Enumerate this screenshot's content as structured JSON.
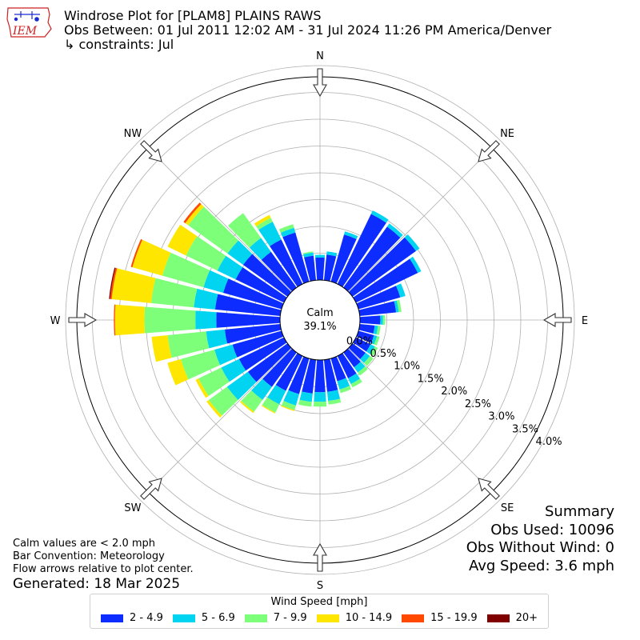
{
  "header": {
    "title": "Windrose Plot for [PLAM8] PLAINS RAWS",
    "period": "Obs Between: 01 Jul 2011 12:02 AM - 31 Jul 2024 11:26 PM America/Denver",
    "constraints": "↳ constraints: Jul"
  },
  "logo": {
    "text": "IEM",
    "color": "#cc2222",
    "accent": "#1a2bd0"
  },
  "notes": {
    "calm_def": "Calm values are < 2.0 mph",
    "bar_convention": "Bar Convention: Meteorology",
    "flow_arrows": "Flow arrows relative to plot center.",
    "generated": "Generated: 18 Mar 2025"
  },
  "summary": {
    "title": "Summary",
    "obs_used": "Obs Used: 10096",
    "obs_without_wind": "Obs Without Wind: 0",
    "avg_speed": "Avg Speed: 3.6 mph"
  },
  "chart_data": {
    "type": "windrose",
    "center_label": "Calm",
    "center_value": "39.1%",
    "calm_percent": 39.1,
    "directions": [
      "N",
      "NE",
      "E",
      "SE",
      "S",
      "SW",
      "W",
      "NW"
    ],
    "radial_ticks": [
      "0.0%",
      "0.5%",
      "1.0%",
      "1.5%",
      "2.0%",
      "2.5%",
      "3.0%",
      "3.5%",
      "4.0%"
    ],
    "radial_tick_values": [
      0.0,
      0.5,
      1.0,
      1.5,
      2.0,
      2.5,
      3.0,
      3.5,
      4.0
    ],
    "rlim": [
      0,
      4.2
    ],
    "units": "percent",
    "legend_title": "Wind Speed [mph]",
    "bins": [
      {
        "label": "2 - 4.9",
        "color": "#0d2cff"
      },
      {
        "label": "5 - 6.9",
        "color": "#00d4f0"
      },
      {
        "label": "7 - 9.9",
        "color": "#7dff7a"
      },
      {
        "label": "10 - 14.9",
        "color": "#ffe600"
      },
      {
        "label": "15 - 19.9",
        "color": "#ff4800"
      },
      {
        "label": "20+",
        "color": "#800000"
      }
    ],
    "sectors": [
      {
        "dir": 0,
        "values": [
          0.42,
          0.05,
          0.0,
          0.0,
          0.0,
          0.0
        ]
      },
      {
        "dir": 10,
        "values": [
          0.48,
          0.06,
          0.0,
          0.0,
          0.0,
          0.0
        ]
      },
      {
        "dir": 20,
        "values": [
          0.91,
          0.06,
          0.0,
          0.0,
          0.0,
          0.0
        ]
      },
      {
        "dir": 30,
        "values": [
          1.45,
          0.07,
          0.0,
          0.0,
          0.0,
          0.0
        ]
      },
      {
        "dir": 40,
        "values": [
          1.4,
          0.07,
          0.0,
          0.0,
          0.0,
          0.0
        ]
      },
      {
        "dir": 50,
        "values": [
          1.46,
          0.08,
          0.0,
          0.0,
          0.0,
          0.0
        ]
      },
      {
        "dir": 60,
        "values": [
          1.28,
          0.07,
          0.0,
          0.0,
          0.0,
          0.0
        ]
      },
      {
        "dir": 70,
        "values": [
          0.81,
          0.1,
          0.0,
          0.0,
          0.0,
          0.0
        ]
      },
      {
        "dir": 80,
        "values": [
          0.68,
          0.05,
          0.05,
          0.0,
          0.0,
          0.0
        ]
      },
      {
        "dir": 90,
        "values": [
          0.38,
          0.05,
          0.04,
          0.0,
          0.0,
          0.0
        ]
      },
      {
        "dir": 100,
        "values": [
          0.28,
          0.06,
          0.05,
          0.0,
          0.0,
          0.0
        ]
      },
      {
        "dir": 110,
        "values": [
          0.3,
          0.06,
          0.05,
          0.0,
          0.0,
          0.0
        ]
      },
      {
        "dir": 120,
        "values": [
          0.3,
          0.09,
          0.06,
          0.0,
          0.0,
          0.0
        ]
      },
      {
        "dir": 130,
        "values": [
          0.3,
          0.1,
          0.08,
          0.0,
          0.0,
          0.0
        ]
      },
      {
        "dir": 140,
        "values": [
          0.34,
          0.12,
          0.07,
          0.0,
          0.0,
          0.0
        ]
      },
      {
        "dir": 150,
        "values": [
          0.46,
          0.12,
          0.07,
          0.0,
          0.0,
          0.0
        ]
      },
      {
        "dir": 160,
        "values": [
          0.44,
          0.16,
          0.07,
          0.0,
          0.0,
          0.0
        ]
      },
      {
        "dir": 170,
        "values": [
          0.6,
          0.17,
          0.07,
          0.0,
          0.0,
          0.0
        ]
      },
      {
        "dir": 180,
        "values": [
          0.6,
          0.18,
          0.09,
          0.0,
          0.0,
          0.0
        ]
      },
      {
        "dir": 190,
        "values": [
          0.63,
          0.16,
          0.09,
          0.0,
          0.0,
          0.0
        ]
      },
      {
        "dir": 200,
        "values": [
          0.69,
          0.22,
          0.09,
          0.02,
          0.0,
          0.0
        ]
      },
      {
        "dir": 210,
        "values": [
          0.72,
          0.28,
          0.17,
          0.02,
          0.0,
          0.0
        ]
      },
      {
        "dir": 220,
        "values": [
          0.79,
          0.3,
          0.27,
          0.03,
          0.0,
          0.0
        ]
      },
      {
        "dir": 230,
        "values": [
          0.91,
          0.48,
          0.42,
          0.05,
          0.0,
          0.0
        ]
      },
      {
        "dir": 240,
        "values": [
          0.93,
          0.37,
          0.47,
          0.06,
          0.0,
          0.0
        ]
      },
      {
        "dir": 250,
        "values": [
          0.95,
          0.35,
          0.65,
          0.26,
          0.0,
          0.0
        ]
      },
      {
        "dir": 260,
        "values": [
          1.04,
          0.35,
          0.72,
          0.3,
          0.0,
          0.0
        ]
      },
      {
        "dir": 270,
        "values": [
          1.19,
          0.39,
          0.95,
          0.55,
          0.02,
          0.0
        ]
      },
      {
        "dir": 280,
        "values": [
          1.22,
          0.4,
          0.8,
          0.74,
          0.03,
          0.02
        ]
      },
      {
        "dir": 290,
        "values": [
          1.13,
          0.38,
          0.8,
          0.58,
          0.03,
          0.0
        ]
      },
      {
        "dir": 300,
        "values": [
          1.0,
          0.38,
          0.65,
          0.38,
          0.0,
          0.0
        ]
      },
      {
        "dir": 310,
        "values": [
          1.02,
          0.36,
          0.9,
          0.07,
          0.04,
          0.0
        ]
      },
      {
        "dir": 320,
        "values": [
          0.82,
          0.32,
          0.57,
          0.0,
          0.0,
          0.0
        ]
      },
      {
        "dir": 330,
        "values": [
          0.92,
          0.37,
          0.08,
          0.06,
          0.0,
          0.0
        ]
      },
      {
        "dir": 340,
        "values": [
          0.95,
          0.09,
          0.07,
          0.0,
          0.0,
          0.0
        ]
      },
      {
        "dir": 350,
        "values": [
          0.46,
          0.06,
          0.02,
          0.0,
          0.0,
          0.0
        ]
      }
    ],
    "grid": true,
    "legend_placement": "bottom-center"
  }
}
